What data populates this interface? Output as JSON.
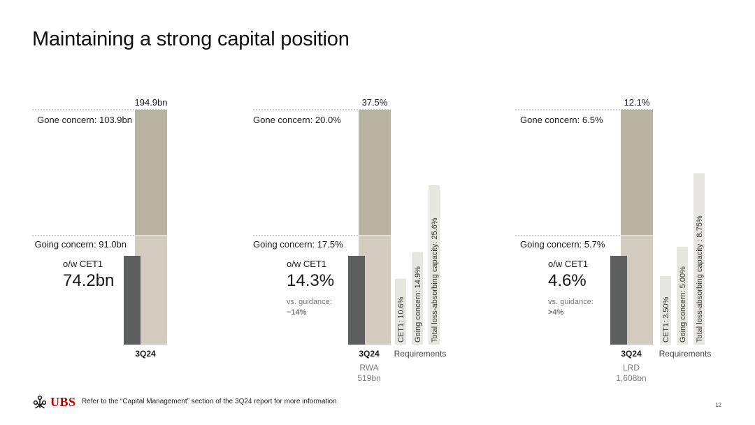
{
  "title": "Maintaining a strong capital position",
  "footnote": "Refer to the “Capital Management” section of the 3Q24 report for more information",
  "page_number": "12",
  "brand": {
    "name": "UBS",
    "color": "#c00000"
  },
  "colors": {
    "gone": "#b8b2a0",
    "going": "#d1ccbd",
    "cet1": "#5c5f5e",
    "req": "#e7e6e1",
    "text": "#1a1a1a",
    "muted": "#7a7a7a"
  },
  "chart_data": [
    {
      "type": "bar",
      "category": "3Q24",
      "total_label": "194.9bn",
      "gone_label": "Gone concern: 103.9bn",
      "going_label": "Going concern: 91.0bn",
      "cet1_caption": "o/w CET1",
      "cet1_value": "74.2bn",
      "values": {
        "total": 194.9,
        "gone": 103.9,
        "going": 91.0,
        "cet1": 74.2
      },
      "unit": "bn"
    },
    {
      "type": "bar",
      "category": "3Q24",
      "sub_label": "RWA",
      "sub_value": "519bn",
      "total_label": "37.5%",
      "gone_label": "Gone concern: 20.0%",
      "going_label": "Going concern: 17.5%",
      "cet1_caption": "o/w CET1",
      "cet1_value": "14.3%",
      "guidance_label": "vs. guidance:",
      "guidance_value": "~14%",
      "values": {
        "total": 37.5,
        "gone": 20.0,
        "going": 17.5,
        "cet1": 14.3
      },
      "requirements_label": "Requirements",
      "requirements": [
        {
          "label": "CET1: 10.6%",
          "value": 10.6
        },
        {
          "label": "Going concern: 14.9%",
          "value": 14.9
        },
        {
          "label": "Total loss-absorbing capacity: 25.6%",
          "value": 25.6
        }
      ],
      "unit": "%"
    },
    {
      "type": "bar",
      "category": "3Q24",
      "sub_label": "LRD",
      "sub_value": "1,608bn",
      "total_label": "12.1%",
      "gone_label": "Gone concern: 6.5%",
      "going_label": "Going concern: 5.7%",
      "cet1_caption": "o/w CET1",
      "cet1_value": "4.6%",
      "guidance_label": "vs. guidance:",
      "guidance_value": ">4%",
      "values": {
        "total": 12.1,
        "gone": 6.5,
        "going": 5.7,
        "cet1": 4.6
      },
      "requirements_label": "Requirements",
      "requirements": [
        {
          "label": "CET1: 3.50%",
          "value": 3.5
        },
        {
          "label": "Going concern: 5.00%",
          "value": 5.0
        },
        {
          "label": "Total loss-absorbing capacity : 8.75%",
          "value": 8.75
        }
      ],
      "unit": "%"
    }
  ]
}
